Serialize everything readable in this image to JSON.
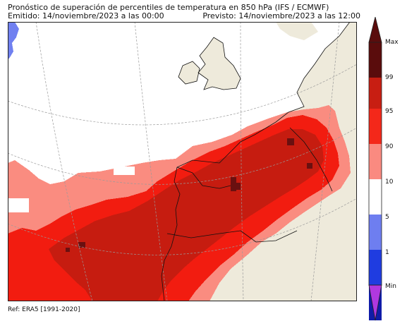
{
  "header": {
    "title": "Pronóstico de superación de percentiles de temperatura en 850 hPa (IFS / ECMWF)",
    "issued": "Emitido: 14/noviembre/2023 a las 00:00",
    "valid": "Previsto: 14/noviembre/2023 a las 12:00"
  },
  "footer": {
    "reference": "Ref: ERA5 [1991-2020]"
  },
  "map": {
    "colors": {
      "ocean": "#ffffff",
      "land": "#eeeadb",
      "p90_95": "#fa8c80",
      "p95_99": "#f21c10",
      "p99_max": "#c61c10",
      "max": "#6a1010",
      "p5_10": "#7080f0",
      "coast": "#111111",
      "graticule": "#9a9a9a"
    },
    "legend": {
      "labels": [
        "Max",
        "99",
        "95",
        "90",
        "10",
        "5",
        "1",
        "Min"
      ],
      "colors": {
        "max": "#5a0c0c",
        "p99": "#c81e12",
        "p95": "#f4281a",
        "p90": "#fa8a80",
        "white": "#ffffff",
        "p10": "#6e7ef0",
        "p5": "#1f3ce0",
        "p1": "#101ca8",
        "min": "#020a6a",
        "min_tip": "#b038e0"
      }
    }
  }
}
